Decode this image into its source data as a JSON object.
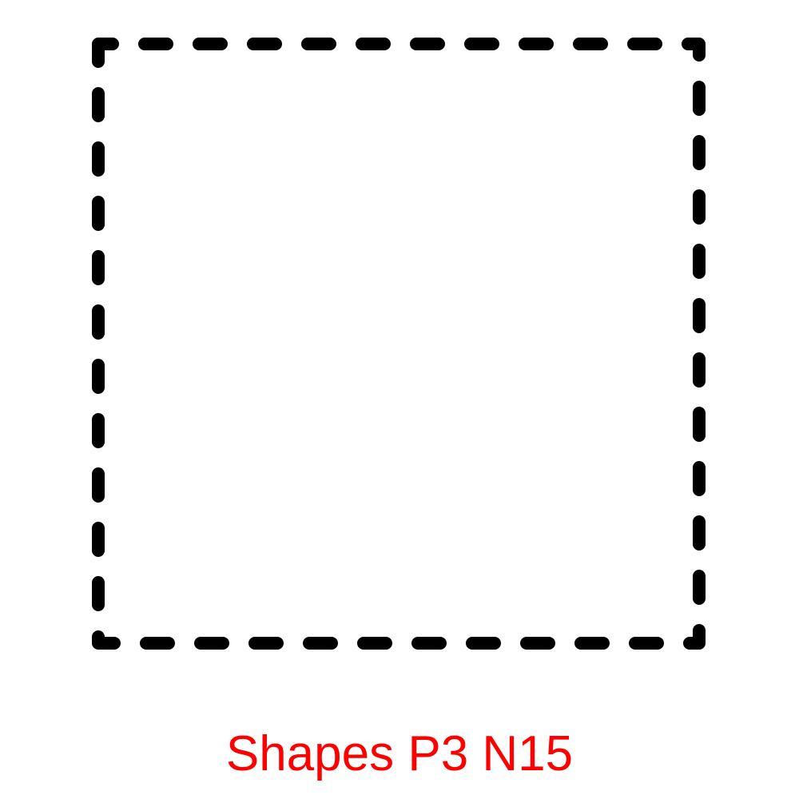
{
  "caption": "Shapes P3 N15",
  "colors": {
    "background": "#ffffff",
    "shape_stroke": "#000000",
    "caption": "#ff0000"
  },
  "shape": {
    "kind": "square",
    "outline": "dashed",
    "fill": "none"
  }
}
